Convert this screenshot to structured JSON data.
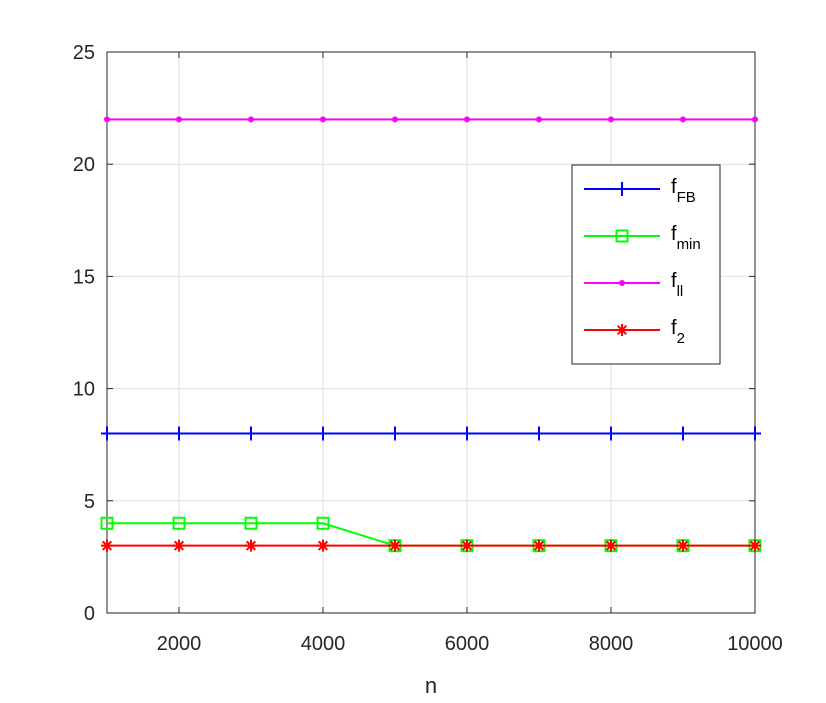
{
  "chart_data": {
    "type": "line",
    "title": "",
    "xlabel": "n",
    "ylabel": "",
    "xlim": [
      1000,
      10000
    ],
    "ylim": [
      0,
      25
    ],
    "xticks": [
      2000,
      4000,
      6000,
      8000,
      10000
    ],
    "xtick_labels": [
      "2000",
      "4000",
      "6000",
      "8000",
      "10000"
    ],
    "yticks": [
      0,
      5,
      10,
      15,
      20,
      25
    ],
    "ytick_labels": [
      "0",
      "5",
      "10",
      "15",
      "20",
      "25"
    ],
    "grid": true,
    "legend_position": "right, upper-middle",
    "x": [
      1000,
      2000,
      3000,
      4000,
      5000,
      6000,
      7000,
      8000,
      9000,
      10000
    ],
    "series": [
      {
        "name": "f_FB",
        "legend_base": "f",
        "legend_sub": "FB",
        "color": "#0000ff",
        "marker": "plus",
        "values": [
          8,
          8,
          8,
          8,
          8,
          8,
          8,
          8,
          8,
          8
        ]
      },
      {
        "name": "f_min",
        "legend_base": "f",
        "legend_sub": "min",
        "color": "#00ff00",
        "marker": "square",
        "values": [
          4,
          4,
          4,
          4,
          3,
          3,
          3,
          3,
          3,
          3
        ]
      },
      {
        "name": "f_ll",
        "legend_base": "f",
        "legend_sub": "ll",
        "color": "#ff00ff",
        "marker": "dot",
        "values": [
          22,
          22,
          22,
          22,
          22,
          22,
          22,
          22,
          22,
          22
        ]
      },
      {
        "name": "f_2",
        "legend_base": "f",
        "legend_sub": "2",
        "color": "#ff0000",
        "marker": "asterisk",
        "values": [
          3,
          3,
          3,
          3,
          3,
          3,
          3,
          3,
          3,
          3
        ]
      }
    ]
  }
}
